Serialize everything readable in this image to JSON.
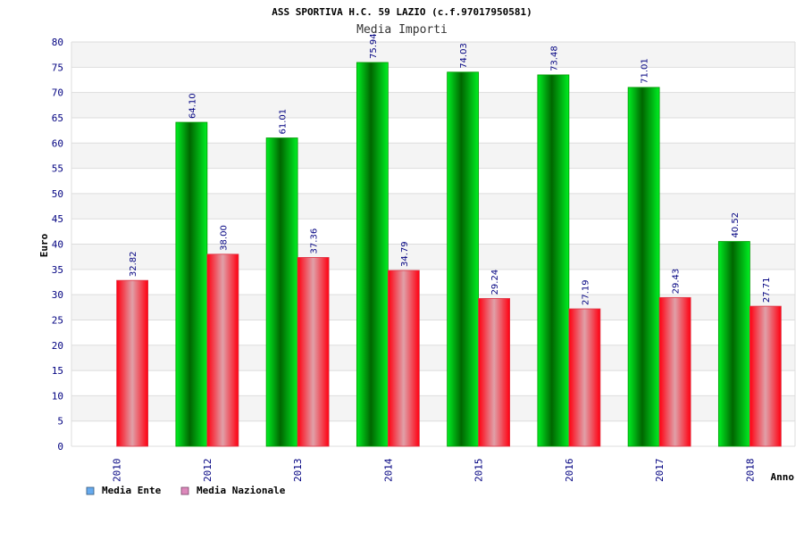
{
  "chart_data": {
    "type": "bar",
    "title": "ASS SPORTIVA H.C. 59 LAZIO (c.f.97017950581)",
    "subtitle": "Media Importi",
    "xlabel": "Anno",
    "ylabel": "Euro",
    "ylim": [
      0,
      80
    ],
    "yticks": [
      0,
      5,
      10,
      15,
      20,
      25,
      30,
      35,
      40,
      45,
      50,
      55,
      60,
      65,
      70,
      75,
      80
    ],
    "categories": [
      "2010",
      "2012",
      "2013",
      "2014",
      "2015",
      "2016",
      "2017",
      "2018"
    ],
    "series": [
      {
        "name": "Media Ente",
        "values": [
          null,
          64.1,
          61.01,
          75.94,
          74.03,
          73.48,
          71.01,
          40.52
        ],
        "labels": [
          "",
          "64.10",
          "61.01",
          "75.94",
          "74.03",
          "73.48",
          "71.01",
          "40.52"
        ],
        "color": "#00cc00",
        "legend_color": "#66aaee"
      },
      {
        "name": "Media Nazionale",
        "values": [
          32.82,
          38.0,
          37.36,
          34.79,
          29.24,
          27.19,
          29.43,
          27.71
        ],
        "labels": [
          "32.82",
          "38.00",
          "37.36",
          "34.79",
          "29.24",
          "27.19",
          "29.43",
          "27.71"
        ],
        "color": "#ee1122",
        "legend_color": "#dd88bb"
      }
    ],
    "grid": true,
    "legend_position": "bottom-left"
  }
}
